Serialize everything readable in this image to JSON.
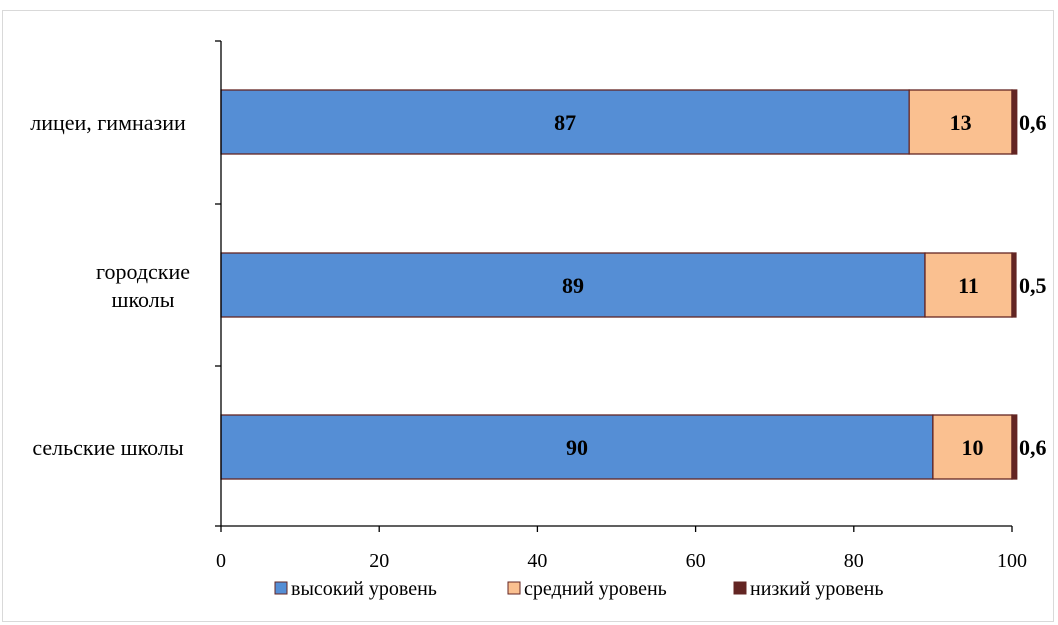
{
  "chart_data": {
    "type": "bar",
    "orientation": "horizontal",
    "stacked": true,
    "categories": [
      [
        "лицеи, гимназии"
      ],
      [
        "городские",
        "школы"
      ],
      [
        "сельские школы"
      ]
    ],
    "series": [
      {
        "name": "высокий уровень",
        "color": "#558ed5",
        "values": [
          87,
          89,
          90
        ],
        "labels": [
          "87",
          "89",
          "90"
        ]
      },
      {
        "name": "средний уровень",
        "color": "#fac090",
        "values": [
          13,
          11,
          10
        ],
        "labels": [
          "13",
          "11",
          "10"
        ]
      },
      {
        "name": "низкий уровень",
        "color": "#632523",
        "values": [
          0.6,
          0.5,
          0.6
        ],
        "labels": [
          "0,6",
          "0,5",
          "0,6"
        ]
      }
    ],
    "xlim": [
      0,
      100
    ],
    "xticks": [
      0,
      20,
      40,
      60,
      80,
      100
    ],
    "grid": false,
    "legend_position": "bottom"
  }
}
